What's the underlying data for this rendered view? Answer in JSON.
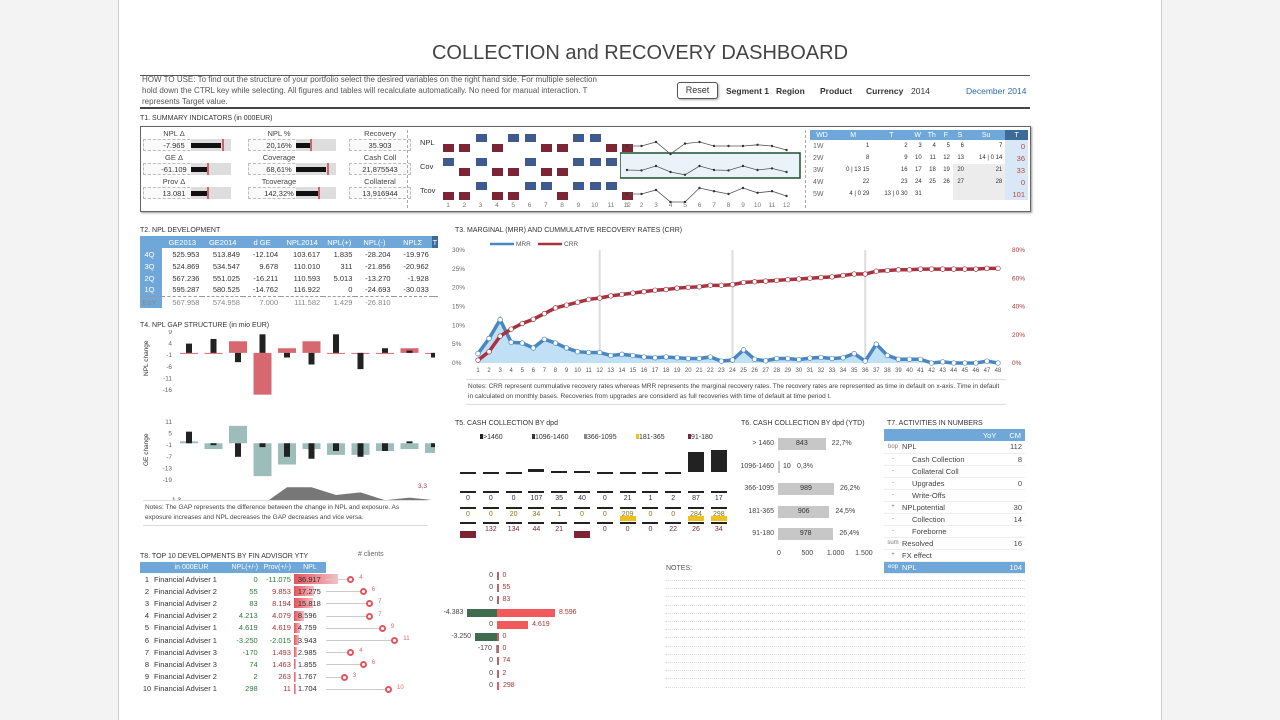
{
  "title": "COLLECTION and RECOVERY DASHBOARD",
  "how_to_use": "HOW TO USE: To find out the structure of your portfolio select the desired variables on the right hand side. For multiple selection hold down the CTRL key while selecting. All figures and tables will recalculate automatically. No need for manual interaction. T represents Target value.",
  "controls": {
    "reset": "Reset",
    "segment": "Segment 1",
    "region": "Region",
    "product": "Product",
    "currency": "Currency",
    "year": "2014",
    "date": "December 2014"
  },
  "t1": {
    "title": "T1. SUMMARY INDICATORS (in 000EUR)",
    "kpis": [
      {
        "label": "NPL Δ",
        "value": "-7.965",
        "fill": 0.75,
        "target": 0.78
      },
      {
        "label": "GE Δ",
        "value": "-61.109",
        "fill": 0.45,
        "target": 0.4
      },
      {
        "label": "Prov  Δ",
        "value": "13.081",
        "fill": 0.45,
        "target": 0.4
      },
      {
        "label": "NPL %",
        "value": "20,16%",
        "fill": 0.35,
        "target": 0.35
      },
      {
        "label": "Coverage",
        "value": "68,61%",
        "fill": 0.75,
        "target": 0.78
      },
      {
        "label": "Tcoverage",
        "value": "142,32%",
        "fill": 0.6,
        "target": 0.55
      },
      {
        "label": "Recovery",
        "value": "35.903"
      },
      {
        "label": "Cash Coll",
        "value": "21,875543"
      },
      {
        "label": "Collateral",
        "value": "13,916944"
      }
    ],
    "squares": [
      {
        "label": "NPL",
        "pattern": [
          "d",
          "d",
          "u",
          "d",
          "u",
          "u",
          "d",
          "d",
          "u",
          "u",
          "d",
          "d"
        ],
        "spark": [
          3,
          3,
          4,
          1,
          3.6,
          4,
          3,
          3,
          3,
          3.3,
          3,
          2
        ]
      },
      {
        "label": "Cov",
        "pattern": [
          "u",
          "d",
          "u",
          "d",
          "d",
          "u",
          "d",
          "d",
          "u",
          "u",
          "u",
          "d"
        ],
        "spark": [
          3,
          2.9,
          4,
          2.5,
          1.8,
          4,
          3,
          2.9,
          4,
          3,
          3.4,
          2.5
        ]
      },
      {
        "label": "Tcov",
        "pattern": [
          "d",
          "d",
          "u",
          "d",
          "d",
          "u",
          "u",
          "d",
          "u",
          "u",
          "u",
          "d"
        ],
        "spark": [
          3,
          3,
          4,
          1,
          1,
          4.5,
          3.7,
          3,
          4.5,
          3.3,
          3.7,
          2.5
        ]
      }
    ],
    "months": [
      "1",
      "2",
      "3",
      "4",
      "5",
      "6",
      "7",
      "8",
      "9",
      "10",
      "11",
      "12"
    ],
    "calendar": {
      "header": [
        "WD",
        "M",
        "T",
        "W",
        "Th",
        "F",
        "S",
        "Su",
        "T"
      ],
      "rows": [
        [
          "1W",
          "1",
          "2",
          "3",
          "4",
          "5",
          "6",
          "7",
          "0"
        ],
        [
          "2W",
          "8",
          "9",
          "10",
          "11",
          "12",
          "13",
          "14 | 0 14",
          "36"
        ],
        [
          "3W",
          "0 | 13 15",
          "16",
          "17",
          "18",
          "19",
          "20",
          "21",
          "33"
        ],
        [
          "4W",
          "22",
          "23",
          "24",
          "25",
          "26",
          "27",
          "28",
          "0"
        ],
        [
          "5W",
          "4 | 0 29",
          "13 | 0 30",
          "31",
          "",
          "",
          "",
          "",
          "101"
        ]
      ]
    }
  },
  "t2": {
    "title": "T2. NPL DEVELOPMENT",
    "headers": [
      "",
      "GE2013",
      "GE2014",
      "d GE",
      "NPL2014",
      "NPL(+)",
      "NPL(-)",
      "NPLΣ",
      "T"
    ],
    "rows": [
      [
        "4Q",
        "525.953",
        "513.849",
        "-12.104",
        "103.617",
        "1.835",
        "-28.204",
        "-19.976",
        ""
      ],
      [
        "3Q",
        "524.869",
        "534.547",
        "9.678",
        "110.010",
        "311",
        "-21.856",
        "-20.962",
        ""
      ],
      [
        "2Q",
        "567.236",
        "551.025",
        "-16.211",
        "110.593",
        "5.013",
        "-13.270",
        "-1.928",
        ""
      ],
      [
        "1Q",
        "595.287",
        "580.525",
        "-14.762",
        "116.922",
        "0",
        "-24.693",
        "-30.033",
        ""
      ],
      [
        "EoY",
        "567.958",
        "574.958",
        "7.000",
        "111.582",
        "1.429",
        "-26.810",
        "",
        ""
      ]
    ]
  },
  "t3": {
    "title": "T3. MARGINAL (MRR) AND CUMMULATIVE RECOVERY RATES (CRR)",
    "notes": "Notes: CRR represent cummulative recovery rates whereas MRR represents the marginal recovery rates. The recovery rates are represented as time in default on x-axis. Time in default in calculated on monthly bases. Recoveries from upgrades are considerd as full recoveries with time of default at time period t."
  },
  "t4": {
    "title": "T4. NPL GAP STRUCTURE (in mio EUR)",
    "npl_label": "NPL change",
    "ge_label": "GE change",
    "gap_label": "GAP",
    "gap_first": "1,3",
    "gap_last": "3,3",
    "notes": "Notes: The GAP represents the difference between the change in NPL and exposure. As exposure increases and NPL decreases the GAP decreases and vice versa."
  },
  "t5": {
    "title": "T5. CASH COLLECTION BY dpd",
    "legend": [
      ">1460",
      "1096-1460",
      "366-1095",
      "181-365",
      "91-180"
    ],
    "bars_top": [
      0,
      0,
      0,
      3,
      1,
      1,
      0,
      0,
      0,
      0,
      20,
      22
    ],
    "row_a": [
      "0",
      "0",
      "0",
      "107",
      "35",
      "40",
      "0",
      "21",
      "1",
      "2",
      "87",
      "17"
    ],
    "row_b": [
      "0",
      "0",
      "20",
      "34",
      "1",
      "0",
      "0",
      "209",
      "0",
      "0",
      "284",
      "298"
    ],
    "row_c": [
      "",
      "132",
      "134",
      "44",
      "21",
      "",
      "0",
      "0",
      "0",
      "22",
      "26",
      "34"
    ]
  },
  "t6": {
    "title": "T6. CASH COLLECTION BY dpd (YTD)",
    "rows": [
      {
        "cat": "> 1460",
        "v": 843,
        "pct": "22,7%"
      },
      {
        "cat": "1096-1460",
        "v": 10,
        "pct": "0,3%"
      },
      {
        "cat": "366-1095",
        "v": 989,
        "pct": "26,2%"
      },
      {
        "cat": "181-365",
        "v": 906,
        "pct": "24,5%"
      },
      {
        "cat": "91-180",
        "v": 978,
        "pct": "26,4%"
      }
    ],
    "ticks": [
      "0",
      "500",
      "1.000",
      "1.500"
    ]
  },
  "t7": {
    "title": "T7. ACTIVITIES IN NUMBERS",
    "headers": [
      "YoY",
      "CM"
    ],
    "rows": [
      [
        "bop",
        "NPL",
        "",
        "112"
      ],
      [
        "-",
        "Cash Collection",
        "",
        "8"
      ],
      [
        "-",
        "Collateral Coll",
        "",
        ""
      ],
      [
        "-",
        "Upgrades",
        "",
        "0"
      ],
      [
        "-",
        "Write-Offs",
        "",
        ""
      ],
      [
        "+",
        "NPLpotential",
        "",
        "30"
      ],
      [
        "-",
        "Collection",
        "",
        "14"
      ],
      [
        "-",
        "Foreborne",
        "",
        ""
      ],
      [
        "sum",
        "Resolved",
        "",
        "16"
      ],
      [
        "+",
        "FX effect",
        "",
        ""
      ],
      [
        "eop",
        "NPL",
        "",
        "104"
      ]
    ]
  },
  "t8": {
    "title": "T8. TOP 10 DEVELOPMENTS BY FIN ADVISOR YTY",
    "clients_label": "# clients",
    "headers": [
      "",
      "in 000EUR",
      "NPL(+/-)",
      "Prov(+/-)",
      "NPL"
    ],
    "rows": [
      [
        "1",
        "Financial Adviser 1",
        "0",
        "-11.075",
        "36.917",
        4,
        0,
        0
      ],
      [
        "2",
        "Financial Adviser 2",
        "55",
        "9.853",
        "17.275",
        6,
        0,
        55
      ],
      [
        "3",
        "Financial Adviser 2",
        "83",
        "8.194",
        "15.818",
        7,
        0,
        83
      ],
      [
        "4",
        "Financial Adviser 2",
        "4.213",
        "4.079",
        "8.596",
        7,
        -4383,
        8596
      ],
      [
        "5",
        "Financial Adviser 1",
        "4.619",
        "4.619",
        "4.759",
        9,
        0,
        4619
      ],
      [
        "6",
        "Financial Adviser 1",
        "-3.250",
        "-2.015",
        "3.943",
        11,
        -3250,
        0
      ],
      [
        "7",
        "Financial Adviser 3",
        "-170",
        "1.493",
        "2.985",
        4,
        -170,
        0
      ],
      [
        "8",
        "Financial Adviser 3",
        "74",
        "1.463",
        "1.855",
        6,
        0,
        74
      ],
      [
        "9",
        "Financial Adviser 2",
        "2",
        "263",
        "1.767",
        3,
        0,
        2
      ],
      [
        "10",
        "Financial Adviser 1",
        "298",
        "11",
        "1.704",
        10,
        0,
        298
      ]
    ],
    "bidir": [
      {
        "l": "0",
        "r": "0"
      },
      {
        "l": "0",
        "r": "55"
      },
      {
        "l": "0",
        "r": "83"
      },
      {
        "l": "-4.383",
        "r": "8.596"
      },
      {
        "l": "0",
        "r": "4.619"
      },
      {
        "l": "-3.250",
        "r": "0"
      },
      {
        "l": "-170",
        "r": "0"
      },
      {
        "l": "0",
        "r": "74"
      },
      {
        "l": "0",
        "r": "2"
      },
      {
        "l": "0",
        "r": "298"
      }
    ]
  },
  "notes_label": "NOTES:",
  "chart_data": [
    {
      "type": "line",
      "title": "T3. MARGINAL (MRR) AND CUMMULATIVE RECOVERY RATES (CRR)",
      "x": [
        1,
        2,
        3,
        4,
        5,
        6,
        7,
        8,
        9,
        10,
        11,
        12,
        13,
        14,
        15,
        16,
        17,
        18,
        19,
        20,
        21,
        22,
        23,
        24,
        25,
        26,
        27,
        28,
        29,
        30,
        31,
        32,
        33,
        34,
        35,
        36,
        37,
        38,
        39,
        40,
        41,
        42,
        43,
        44,
        45,
        46,
        47,
        48
      ],
      "series": [
        {
          "name": "MRR",
          "axis": "left",
          "values": [
            2.5,
            6.5,
            11.5,
            5.5,
            5.3,
            4,
            6.3,
            5.3,
            4,
            3,
            2.8,
            2.8,
            2,
            2.3,
            2,
            1.6,
            1.4,
            1.6,
            1.4,
            1.2,
            1.2,
            1.6,
            0.5,
            0.8,
            3.5,
            1,
            0.6,
            1.2,
            1.2,
            0.9,
            1.3,
            1.5,
            1.2,
            1.4,
            2.5,
            0.5,
            5,
            2,
            1,
            1,
            1,
            0,
            0.3,
            0,
            0,
            0,
            0.5,
            0
          ]
        },
        {
          "name": "CRR",
          "axis": "right",
          "values": [
            2,
            8,
            19,
            24,
            28,
            31,
            35,
            39,
            41,
            43,
            45,
            46,
            47.5,
            48.5,
            49.5,
            50.5,
            51.5,
            52,
            53,
            53.5,
            54,
            55,
            55,
            55.5,
            57,
            57.5,
            58,
            58.5,
            59,
            59.5,
            60,
            60.5,
            61,
            62,
            63,
            63,
            65,
            65.5,
            66,
            66,
            66.5,
            66.5,
            66.5,
            66.5,
            66.5,
            66.5,
            67,
            67
          ]
        }
      ],
      "ylim": [
        0,
        30
      ],
      "y2lim": [
        0,
        80
      ],
      "yticks": [
        "0%",
        "5%",
        "10%",
        "15%",
        "20%",
        "25%",
        "30%"
      ],
      "y2ticks": [
        "0%",
        "20%",
        "40%",
        "60%",
        "80%"
      ]
    },
    {
      "type": "bar",
      "title": "NPL change",
      "categories": [
        "1",
        "2",
        "3",
        "4",
        "5",
        "6",
        "7",
        "8",
        "9",
        "10",
        "11",
        "12"
      ],
      "series": [
        {
          "name": "target",
          "values": [
            0,
            0,
            5,
            -18,
            2,
            5,
            0,
            0,
            0,
            2,
            0,
            -8
          ]
        },
        {
          "name": "actual",
          "values": [
            4,
            6,
            -4,
            8,
            -2,
            -5,
            8,
            -7,
            2,
            1,
            -2,
            2
          ]
        }
      ],
      "ylim": [
        -16,
        9
      ],
      "yticks": [
        "9",
        "4",
        "-1",
        "-6",
        "-11",
        "-16"
      ]
    },
    {
      "type": "bar",
      "title": "GE change",
      "categories": [
        "1",
        "2",
        "3",
        "4",
        "5",
        "6",
        "7",
        "8",
        "9",
        "10",
        "11",
        "12"
      ],
      "series": [
        {
          "name": "target",
          "values": [
            1,
            -3,
            9,
            -17,
            -11,
            -3,
            -6,
            -6,
            -4,
            -3,
            -5,
            -13
          ]
        },
        {
          "name": "actual",
          "values": [
            6,
            -1,
            -7,
            -2,
            -7,
            -8,
            -4,
            -7,
            -4,
            1,
            -2,
            -4
          ]
        }
      ],
      "ylim": [
        -19,
        11
      ],
      "yticks": [
        "11",
        "5",
        "-1",
        "-7",
        "-13",
        "-19"
      ]
    },
    {
      "type": "area",
      "title": "GAP",
      "values": [
        1.3,
        2,
        -3,
        1.3,
        8,
        8,
        5,
        6,
        3,
        4,
        3,
        3.3
      ]
    }
  ]
}
